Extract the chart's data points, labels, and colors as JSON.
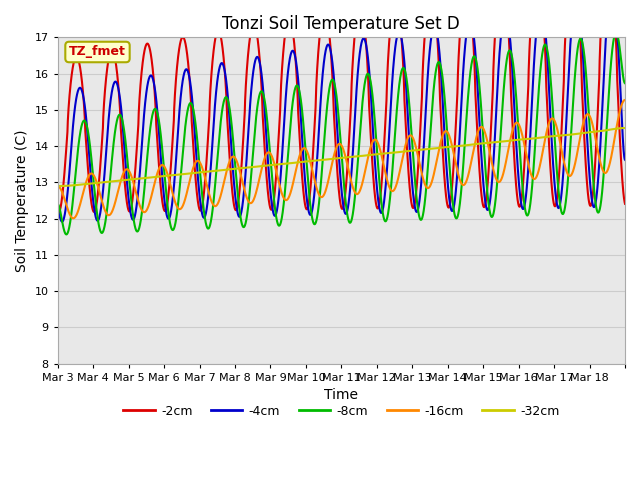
{
  "title": "Tonzi Soil Temperature Set D",
  "xlabel": "Time",
  "ylabel": "Soil Temperature (C)",
  "annotation": "TZ_fmet",
  "annotation_color": "#cc0000",
  "annotation_bg": "#ffffcc",
  "annotation_border": "#aaaa00",
  "ylim": [
    8.0,
    17.0
  ],
  "yticks": [
    8.0,
    9.0,
    10.0,
    11.0,
    12.0,
    13.0,
    14.0,
    15.0,
    16.0,
    17.0
  ],
  "xtick_labels": [
    "Mar 3",
    "Mar 4",
    "Mar 5",
    "Mar 6",
    "Mar 7",
    "Mar 8",
    "Mar 9",
    "Mar 10",
    "Mar 11",
    "Mar 12",
    "Mar 13",
    "Mar 14",
    "Mar 15",
    "Mar 16",
    "Mar 17",
    "Mar 18"
  ],
  "series": [
    {
      "label": "-2cm",
      "color": "#dd0000",
      "lw": 1.5
    },
    {
      "label": "-4cm",
      "color": "#0000cc",
      "lw": 1.5
    },
    {
      "label": "-8cm",
      "color": "#00bb00",
      "lw": 1.5
    },
    {
      "label": "-16cm",
      "color": "#ff8800",
      "lw": 1.5
    },
    {
      "label": "-32cm",
      "color": "#cccc00",
      "lw": 1.5
    }
  ],
  "grid_color": "#cccccc",
  "plot_bg": "#e8e8e8",
  "fig_bg": "#ffffff",
  "n_days": 16,
  "ppd": 288
}
